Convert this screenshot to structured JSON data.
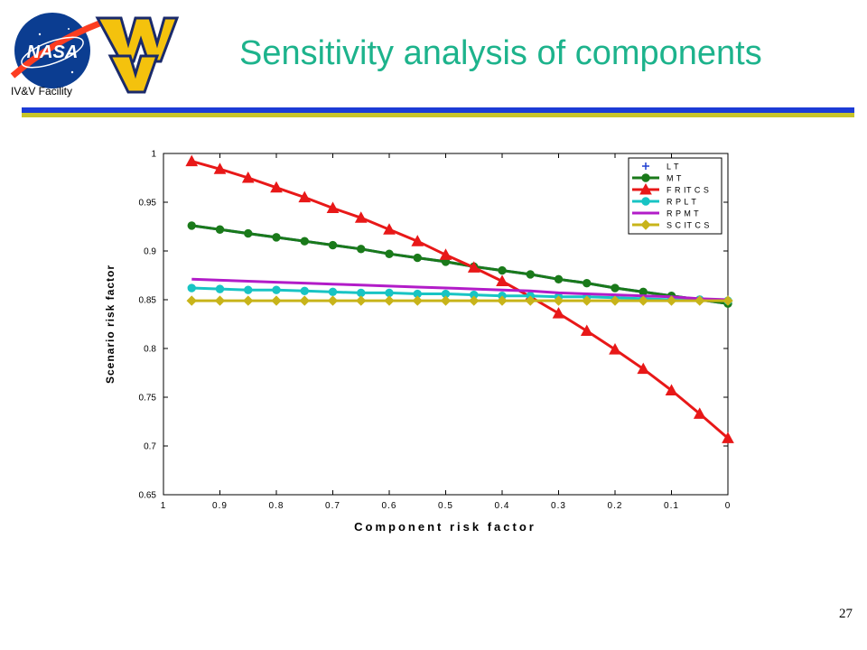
{
  "header": {
    "facility_label": "IV&V Facility",
    "title": "Sensitivity analysis of components",
    "nasa_logo_text": "NASA",
    "title_color": "#1db38c",
    "bar_colors": [
      "#1c3cd6",
      "#c8c428"
    ]
  },
  "footer": {
    "page_number": "27"
  },
  "chart_data": {
    "type": "line",
    "title": "",
    "xlabel": "Component  risk  factor",
    "ylabel": "Scenario  risk  factor",
    "xlim": [
      1,
      0
    ],
    "ylim": [
      0.65,
      1
    ],
    "x_reversed": true,
    "xticks": [
      1,
      0.9,
      0.8,
      0.7,
      0.6,
      0.5,
      0.4,
      0.3,
      0.2,
      0.1,
      0
    ],
    "xtick_labels": [
      "1",
      "0.9",
      "0.8",
      "0.7",
      "0.6",
      "0.5",
      "0.4",
      "0.3",
      "0.2",
      "0.1",
      "0"
    ],
    "yticks": [
      0.65,
      0.7,
      0.75,
      0.8,
      0.85,
      0.9,
      0.95,
      1
    ],
    "ytick_labels": [
      "0.65",
      "0.7",
      "0.75",
      "0.8",
      "0.85",
      "0.9",
      "0.95",
      "1"
    ],
    "grid": false,
    "legend_position": "top-right",
    "x": [
      0.95,
      0.9,
      0.85,
      0.8,
      0.75,
      0.7,
      0.65,
      0.6,
      0.55,
      0.5,
      0.45,
      0.4,
      0.35,
      0.3,
      0.25,
      0.2,
      0.15,
      0.1,
      0.05,
      0
    ],
    "series": [
      {
        "name": "L T",
        "color": "#1f3fd0",
        "marker": "plus",
        "values": [
          0.926,
          0.922,
          0.918,
          0.914,
          0.91,
          0.906,
          0.902,
          0.897,
          0.893,
          0.889,
          0.884,
          0.88,
          0.876,
          0.871,
          0.867,
          0.862,
          0.858,
          0.854,
          0.85,
          0.846
        ]
      },
      {
        "name": "M T",
        "color": "#1a7a1a",
        "marker": "circle",
        "values": [
          0.926,
          0.922,
          0.918,
          0.914,
          0.91,
          0.906,
          0.902,
          0.897,
          0.893,
          0.889,
          0.884,
          0.88,
          0.876,
          0.871,
          0.867,
          0.862,
          0.858,
          0.854,
          0.85,
          0.846
        ]
      },
      {
        "name": "F R IT C S",
        "color": "#e81818",
        "marker": "triangle",
        "values": [
          0.992,
          0.984,
          0.975,
          0.965,
          0.955,
          0.944,
          0.934,
          0.922,
          0.91,
          0.896,
          0.883,
          0.869,
          0.853,
          0.836,
          0.818,
          0.799,
          0.779,
          0.757,
          0.733,
          0.708
        ]
      },
      {
        "name": "R P L T",
        "color": "#18c4c4",
        "marker": "circle",
        "values": [
          0.862,
          0.861,
          0.86,
          0.86,
          0.859,
          0.858,
          0.857,
          0.857,
          0.856,
          0.856,
          0.855,
          0.854,
          0.854,
          0.853,
          0.853,
          0.852,
          0.851,
          0.85,
          0.85,
          0.849
        ]
      },
      {
        "name": "R P M T",
        "color": "#b21cc8",
        "marker": "none",
        "values": [
          0.871,
          0.87,
          0.869,
          0.868,
          0.867,
          0.866,
          0.865,
          0.864,
          0.863,
          0.862,
          0.861,
          0.86,
          0.859,
          0.857,
          0.856,
          0.855,
          0.854,
          0.853,
          0.851,
          0.85
        ]
      },
      {
        "name": "S C IT C S",
        "color": "#c8b41a",
        "marker": "diamond",
        "values": [
          0.849,
          0.849,
          0.849,
          0.849,
          0.849,
          0.849,
          0.849,
          0.849,
          0.849,
          0.849,
          0.849,
          0.849,
          0.849,
          0.849,
          0.849,
          0.849,
          0.849,
          0.849,
          0.849,
          0.849
        ]
      }
    ]
  }
}
